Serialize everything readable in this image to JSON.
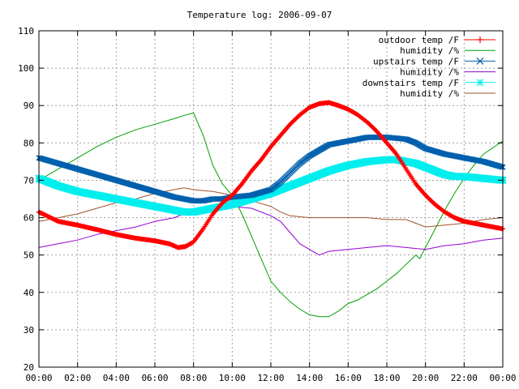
{
  "chart_data": {
    "type": "line",
    "title": "Temperature log: 2006-09-07",
    "xlabel": "",
    "ylabel": "",
    "xlim": [
      0,
      24
    ],
    "ylim": [
      20,
      110
    ],
    "grid": true,
    "legend_position": "top-right",
    "x_ticks": [
      "00:00",
      "02:00",
      "04:00",
      "06:00",
      "08:00",
      "10:00",
      "12:00",
      "14:00",
      "16:00",
      "18:00",
      "20:00",
      "22:00",
      "00:00"
    ],
    "y_ticks": [
      "20",
      "30",
      "40",
      "50",
      "60",
      "70",
      "80",
      "90",
      "100",
      "110"
    ],
    "series": [
      {
        "name": "outdoor temp /F",
        "color": "#ff0000",
        "marker": "plus",
        "x": [
          0,
          1,
          2,
          3,
          4,
          5,
          6,
          6.75,
          7.2,
          7.6,
          8.0,
          8.5,
          9.0,
          9.5,
          10,
          10.5,
          11,
          11.5,
          12,
          12.5,
          13,
          13.5,
          14,
          14.5,
          15,
          15.5,
          16,
          16.5,
          17,
          17.5,
          18,
          18.5,
          19,
          19.5,
          20,
          20.5,
          21,
          21.5,
          22,
          22.5,
          23,
          24
        ],
        "values": [
          61.5,
          59,
          58,
          56.8,
          55.5,
          54.5,
          53.8,
          53,
          52,
          52.3,
          53.5,
          57,
          61,
          64,
          66,
          69,
          72.5,
          75.5,
          79,
          82,
          85,
          87.5,
          89.5,
          90.5,
          90.8,
          90,
          89,
          87.5,
          85.5,
          83,
          80,
          77,
          73,
          69,
          66,
          63.5,
          61.5,
          60,
          59,
          58.5,
          58,
          57
        ]
      },
      {
        "name": "humidity /%",
        "color": "#00a000",
        "marker": "none",
        "x": [
          0,
          1,
          2,
          3,
          4,
          5,
          6,
          7,
          7.6,
          8.0,
          8.5,
          9,
          9.5,
          10,
          10.5,
          11,
          11.5,
          12,
          12.5,
          13,
          13.5,
          14,
          14.5,
          15,
          15.5,
          16,
          16.5,
          17,
          17.5,
          18,
          18.5,
          19,
          19.5,
          19.7,
          20,
          20.5,
          21,
          21.5,
          22,
          22.5,
          23,
          24
        ],
        "values": [
          70,
          73,
          76,
          79,
          81.5,
          83.5,
          85,
          86.5,
          87.5,
          88,
          82,
          74,
          69,
          66,
          61,
          55,
          49,
          43,
          40,
          37.5,
          35.5,
          34,
          33.5,
          33.5,
          35,
          37,
          38,
          39.5,
          41,
          43,
          45,
          47.5,
          50,
          49,
          52,
          57,
          62,
          66.5,
          70.5,
          74,
          77,
          80.5
        ]
      },
      {
        "name": "upstairs temp /F",
        "color": "#0060ad",
        "marker": "cross",
        "x": [
          0,
          1,
          2,
          3,
          4,
          5,
          6,
          7,
          7.5,
          8,
          8.5,
          9,
          9.5,
          10,
          11,
          12,
          12.5,
          13,
          13.5,
          14,
          14.5,
          15,
          16,
          17,
          18,
          19,
          19.5,
          20,
          21,
          22,
          23,
          24
        ],
        "values": [
          76,
          74.5,
          73,
          71.5,
          70,
          68.5,
          67,
          65.5,
          65,
          64.5,
          64.5,
          65,
          65,
          65.5,
          66,
          67.5,
          69.5,
          72,
          74.5,
          76.5,
          78,
          79.5,
          80.5,
          81.5,
          81.5,
          81,
          80,
          78.5,
          77,
          76,
          75,
          73.5
        ]
      },
      {
        "name": "humidity /%",
        "color": "#9400d3",
        "marker": "none",
        "x": [
          0,
          1,
          2,
          3,
          4,
          5,
          6,
          7,
          7.5,
          8,
          9,
          10,
          11,
          12,
          12.5,
          13,
          13.5,
          14,
          14.5,
          15,
          16,
          17,
          18,
          19,
          20,
          21,
          22,
          23,
          24
        ],
        "values": [
          52,
          53,
          54,
          55.5,
          56.5,
          57.5,
          59,
          60,
          61,
          62,
          62.5,
          63,
          62.5,
          60.5,
          59,
          56,
          53,
          51.5,
          50,
          51,
          51.5,
          52,
          52.5,
          52,
          51.5,
          52.5,
          53,
          54,
          54.5
        ]
      },
      {
        "name": "downstairs temp /F",
        "color": "#00eeee",
        "marker": "star",
        "x": [
          0,
          1,
          2,
          3,
          4,
          5,
          6,
          7,
          7.5,
          8,
          9,
          10,
          11,
          12,
          13,
          14,
          15,
          16,
          17,
          18,
          18.5,
          19,
          19.5,
          20,
          20.5,
          21,
          21.5,
          22,
          23,
          24
        ],
        "values": [
          70.5,
          68.5,
          67,
          66,
          65,
          64,
          63,
          62,
          61.5,
          61.5,
          62.5,
          63.5,
          65,
          66.5,
          68.5,
          70.5,
          72.5,
          74,
          75,
          75.5,
          75.5,
          75,
          74.5,
          73.5,
          72.5,
          71.5,
          71,
          71,
          70.5,
          70
        ]
      },
      {
        "name": "humidity /%",
        "color": "#a0522d",
        "marker": "none",
        "x": [
          0,
          1,
          2,
          3,
          4,
          5,
          6,
          7,
          7.5,
          8,
          9,
          10,
          11,
          12,
          12.5,
          13,
          14,
          15,
          16,
          17,
          18,
          19,
          19.5,
          20,
          21,
          22,
          23,
          24
        ],
        "values": [
          59,
          60,
          61,
          62.5,
          64,
          65,
          66.5,
          67.5,
          68,
          67.5,
          67,
          66,
          64.5,
          63,
          61.5,
          60.5,
          60,
          60,
          60,
          60,
          59.5,
          59.5,
          58.5,
          57.5,
          58,
          58.5,
          59.5,
          60
        ]
      }
    ]
  }
}
